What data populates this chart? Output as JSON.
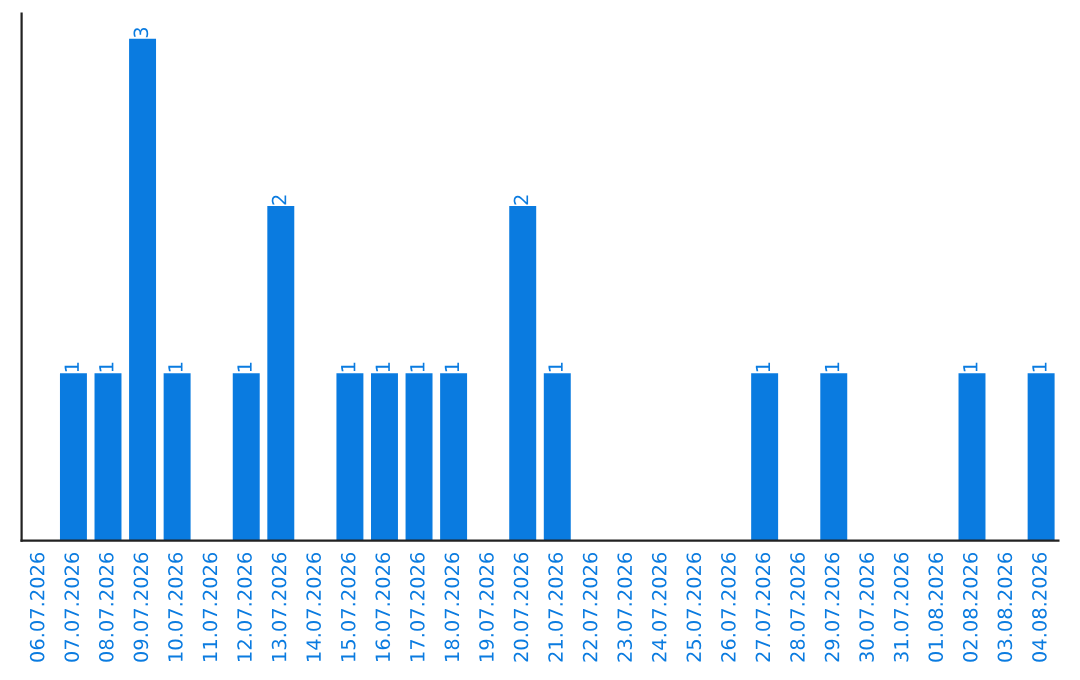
{
  "chart_data": {
    "type": "bar",
    "categories": [
      "06.07.2026",
      "07.07.2026",
      "08.07.2026",
      "09.07.2026",
      "10.07.2026",
      "11.07.2026",
      "12.07.2026",
      "13.07.2026",
      "14.07.2026",
      "15.07.2026",
      "16.07.2026",
      "17.07.2026",
      "18.07.2026",
      "19.07.2026",
      "20.07.2026",
      "21.07.2026",
      "22.07.2026",
      "23.07.2026",
      "24.07.2026",
      "25.07.2026",
      "26.07.2026",
      "27.07.2026",
      "28.07.2026",
      "29.07.2026",
      "30.07.2026",
      "31.07.2026",
      "01.08.2026",
      "02.08.2026",
      "03.08.2026",
      "04.08.2026"
    ],
    "values": [
      0,
      1,
      1,
      3,
      1,
      0,
      1,
      2,
      0,
      1,
      1,
      1,
      1,
      0,
      2,
      1,
      0,
      0,
      0,
      0,
      0,
      1,
      0,
      1,
      0,
      0,
      0,
      1,
      0,
      1
    ],
    "color": "#0a7be0",
    "value_labels": [
      null,
      "1",
      "1",
      "3",
      "1",
      null,
      "1",
      "2",
      null,
      "1",
      "1",
      "1",
      "1",
      null,
      "2",
      "1",
      null,
      null,
      null,
      null,
      null,
      "1",
      null,
      "1",
      null,
      null,
      null,
      "1",
      null,
      "1"
    ],
    "tick_labels": "x",
    "grid": false,
    "legend": false
  }
}
